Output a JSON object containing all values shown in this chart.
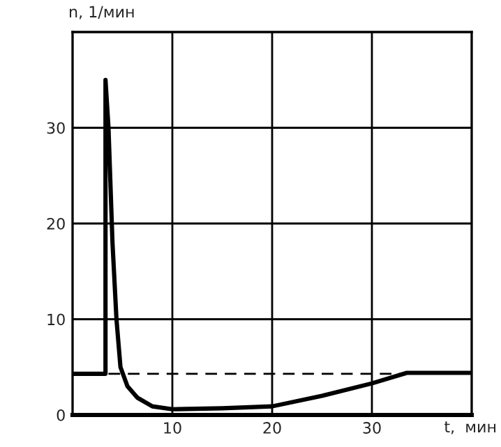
{
  "chart_data": {
    "type": "line",
    "xlabel": "t,  мин",
    "ylabel": "n, 1/мин",
    "xlim": [
      0,
      40
    ],
    "ylim": [
      0,
      40
    ],
    "xticks": [
      10,
      20,
      30
    ],
    "yticks": [
      0,
      10,
      20,
      30
    ],
    "grid": true,
    "series": [
      {
        "color": "#000000",
        "line_style": "solid",
        "x": [
          0,
          3.3,
          3.3,
          3.6,
          4.0,
          4.4,
          4.8,
          5.5,
          6.5,
          8,
          10,
          15,
          20,
          25,
          30,
          33.5,
          40
        ],
        "values": [
          4.3,
          4.3,
          35,
          30,
          18,
          10,
          5,
          3,
          1.8,
          0.9,
          0.6,
          0.7,
          0.9,
          2.0,
          3.3,
          4.4,
          4.4
        ]
      },
      {
        "color": "#000000",
        "line_style": "dashed",
        "x": [
          3.6,
          33.5
        ],
        "values": [
          4.3,
          4.3
        ]
      }
    ]
  }
}
